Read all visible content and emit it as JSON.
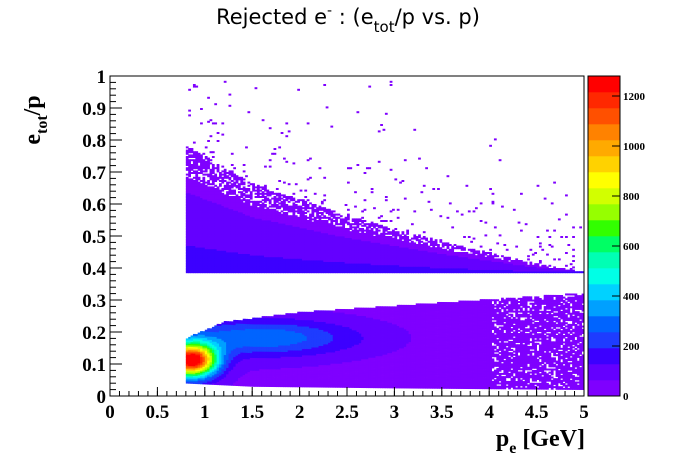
{
  "chart_data": {
    "type": "heatmap",
    "title_parts": [
      "Rejected e",
      "-",
      " : (e",
      "tot",
      "/p vs. p)"
    ],
    "xlabel_parts": [
      "p",
      "e",
      " [GeV]"
    ],
    "ylabel_parts": [
      "e",
      "tot",
      "/p"
    ],
    "xlim": [
      0,
      5
    ],
    "ylim": [
      0,
      1
    ],
    "zlim": [
      0,
      1280
    ],
    "xticks": [
      "0",
      "0.5",
      "1",
      "1.5",
      "2",
      "2.5",
      "3",
      "3.5",
      "4",
      "4.5",
      "5"
    ],
    "yticks": [
      "0",
      "0.1",
      "0.2",
      "0.3",
      "0.4",
      "0.5",
      "0.6",
      "0.7",
      "0.8",
      "0.9",
      "1"
    ],
    "zticks": [
      "0",
      "200",
      "400",
      "600",
      "800",
      "1000",
      "1200"
    ],
    "colormap": [
      "#7f00ff",
      "#6400ff",
      "#3c00ff",
      "#1e3cff",
      "#0064ff",
      "#00a0ff",
      "#00d2ff",
      "#00ffe6",
      "#00ffb4",
      "#00ff64",
      "#32ff00",
      "#96ff00",
      "#d2ff00",
      "#ffff00",
      "#ffd200",
      "#ffaa00",
      "#ff8200",
      "#ff5000",
      "#ff2800",
      "#ff0000"
    ],
    "bands": [
      {
        "name": "upper",
        "x_start": 0.8,
        "lower_edge": 0.385,
        "upper_edge_at": [
          [
            0.8,
            0.78
          ],
          [
            1.5,
            0.66
          ],
          [
            2.5,
            0.56
          ],
          [
            3.5,
            0.48
          ],
          [
            4.5,
            0.41
          ],
          [
            5.0,
            0.385
          ]
        ],
        "peak_counts": 120
      },
      {
        "name": "lower",
        "x_start": 0.8,
        "lower_edge_at": [
          [
            0.8,
            0.04
          ],
          [
            1.5,
            0.03
          ],
          [
            3.0,
            0.025
          ],
          [
            5.0,
            0.02
          ]
        ],
        "upper_edge_at": [
          [
            0.8,
            0.18
          ],
          [
            1.2,
            0.23
          ],
          [
            2.0,
            0.26
          ],
          [
            3.0,
            0.28
          ],
          [
            4.0,
            0.3
          ],
          [
            5.0,
            0.32
          ]
        ],
        "peak_at": [
          0.85,
          0.11
        ],
        "peak_counts": 1280
      }
    ]
  }
}
